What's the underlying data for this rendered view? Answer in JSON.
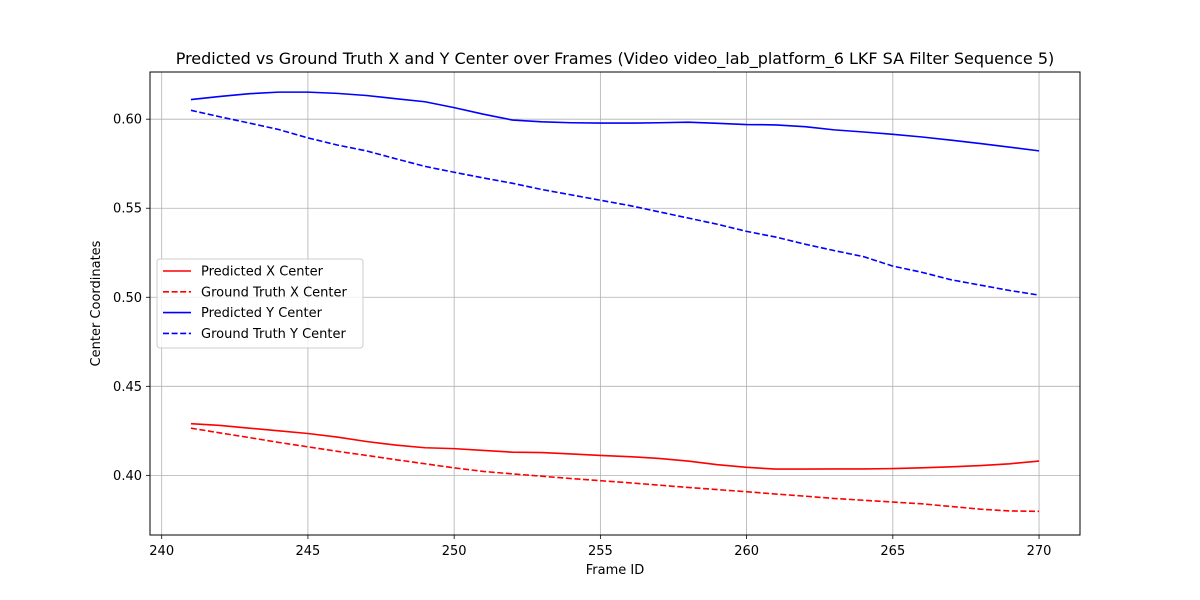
{
  "chart_data": {
    "type": "line",
    "title": "Predicted vs Ground Truth X and Y Center over Frames (Video video_lab_platform_6 LKF SA Filter Sequence 5)",
    "xlabel": "Frame ID",
    "ylabel": "Center Coordinates",
    "xlim": [
      239.6,
      271.4
    ],
    "ylim": [
      0.3665,
      0.6265
    ],
    "xticks": [
      240,
      245,
      250,
      255,
      260,
      265,
      270
    ],
    "yticks": [
      0.4,
      0.45,
      0.5,
      0.55,
      0.6
    ],
    "grid": true,
    "legend_position": "center-left",
    "x": [
      241,
      242,
      243,
      244,
      245,
      246,
      247,
      248,
      249,
      250,
      251,
      252,
      253,
      254,
      255,
      256,
      257,
      258,
      259,
      260,
      261,
      262,
      263,
      264,
      265,
      266,
      267,
      268,
      269,
      270
    ],
    "series": [
      {
        "name": "Predicted X Center",
        "color": "#ff0000",
        "dash": "solid",
        "values": [
          0.429,
          0.428,
          0.4265,
          0.425,
          0.4235,
          0.4215,
          0.419,
          0.417,
          0.4155,
          0.415,
          0.414,
          0.413,
          0.4128,
          0.412,
          0.4112,
          0.4105,
          0.4095,
          0.408,
          0.406,
          0.4045,
          0.4035,
          0.4035,
          0.4036,
          0.4036,
          0.4038,
          0.4042,
          0.4048,
          0.4055,
          0.4065,
          0.408
        ]
      },
      {
        "name": "Ground Truth X Center",
        "color": "#ff0000",
        "dash": "dashed",
        "values": [
          0.4265,
          0.4238,
          0.4212,
          0.4185,
          0.416,
          0.4135,
          0.4112,
          0.4088,
          0.4065,
          0.4042,
          0.4022,
          0.4008,
          0.3995,
          0.3982,
          0.397,
          0.3958,
          0.3945,
          0.3932,
          0.392,
          0.3908,
          0.3895,
          0.3883,
          0.387,
          0.386,
          0.385,
          0.384,
          0.3825,
          0.381,
          0.38,
          0.3798
        ]
      },
      {
        "name": "Predicted Y Center",
        "color": "#0000ff",
        "dash": "solid",
        "values": [
          0.611,
          0.6128,
          0.6143,
          0.6152,
          0.6152,
          0.6145,
          0.6133,
          0.6115,
          0.6098,
          0.6065,
          0.6028,
          0.5995,
          0.5985,
          0.598,
          0.5978,
          0.5978,
          0.598,
          0.5983,
          0.5977,
          0.597,
          0.5968,
          0.5958,
          0.594,
          0.5928,
          0.5915,
          0.59,
          0.5882,
          0.5863,
          0.5843,
          0.5822
        ]
      },
      {
        "name": "Ground Truth Y Center",
        "color": "#0000ff",
        "dash": "dashed",
        "values": [
          0.605,
          0.6013,
          0.5978,
          0.5942,
          0.5895,
          0.5855,
          0.5822,
          0.5778,
          0.5735,
          0.5702,
          0.567,
          0.564,
          0.5605,
          0.5575,
          0.5545,
          0.5515,
          0.548,
          0.5445,
          0.541,
          0.537,
          0.5338,
          0.5298,
          0.5262,
          0.5228,
          0.5175,
          0.514,
          0.5098,
          0.5068,
          0.5038,
          0.5012
        ]
      }
    ]
  }
}
